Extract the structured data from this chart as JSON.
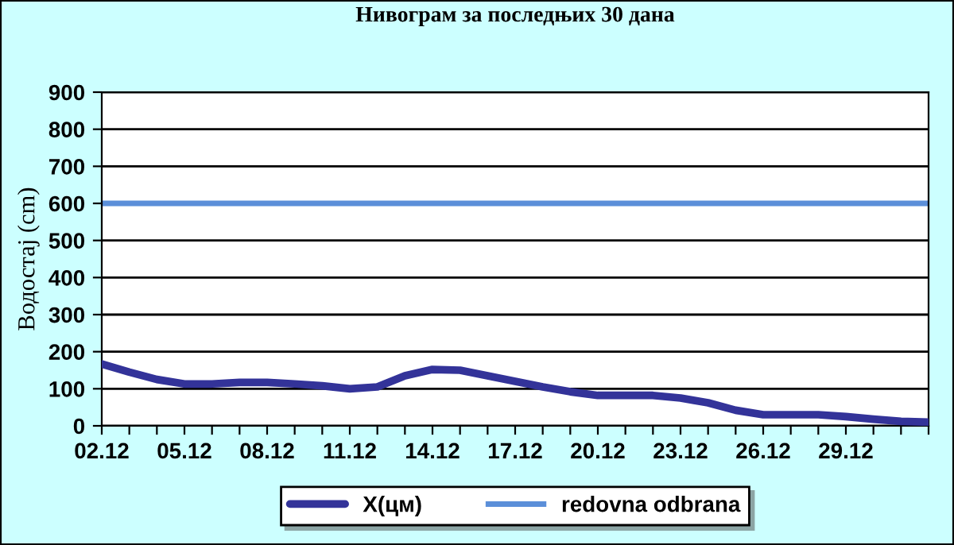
{
  "chart_data": {
    "type": "line",
    "title": "Нивограм за последњих 30 дана",
    "ylabel": "Водостај (cm)",
    "categories": [
      "02.12",
      null,
      null,
      "05.12",
      null,
      null,
      "08.12",
      null,
      null,
      "11.12",
      null,
      null,
      "14.12",
      null,
      null,
      "17.12",
      null,
      null,
      "20.12",
      null,
      null,
      "23.12",
      null,
      null,
      "26.12",
      null,
      null,
      "29.12",
      null,
      null,
      null
    ],
    "series": [
      {
        "name": "X(цм)",
        "color": "#333399",
        "values": [
          167,
          145,
          125,
          113,
          113,
          117,
          117,
          113,
          108,
          100,
          105,
          135,
          152,
          150,
          135,
          120,
          105,
          92,
          82,
          82,
          82,
          75,
          62,
          42,
          30,
          30,
          30,
          25,
          18,
          12,
          10
        ]
      }
    ],
    "ref_lines": [
      {
        "axis": "y",
        "value": 600,
        "label": "redovna odbrana",
        "color": "#5b8fd9"
      }
    ],
    "ylim": [
      0,
      900
    ],
    "yticks": [
      0,
      100,
      200,
      300,
      400,
      500,
      600,
      700,
      800,
      900
    ],
    "grid": "y",
    "legend": "bottom",
    "marker": "none",
    "line_style": "solid"
  }
}
